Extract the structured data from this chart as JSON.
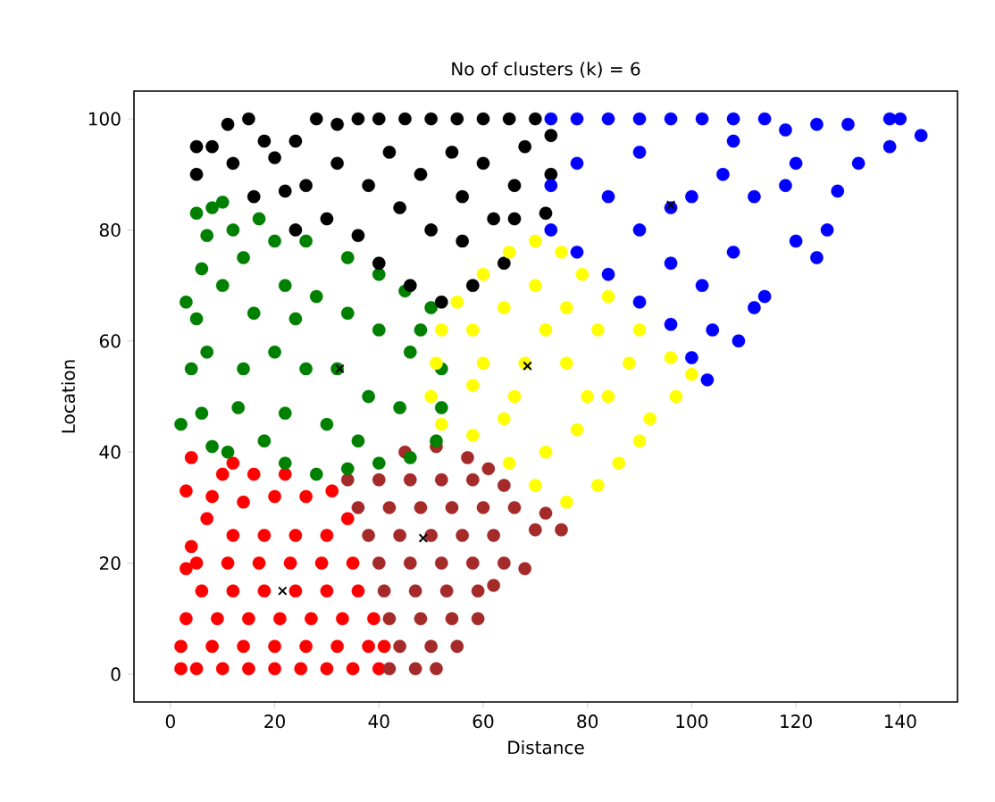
{
  "chart_data": {
    "type": "scatter",
    "title": "No of clusters (k) = 6",
    "xlabel": "Distance",
    "ylabel": "Location",
    "xlim": [
      -7,
      151
    ],
    "ylim": [
      -5,
      105
    ],
    "xticks": [
      0,
      20,
      40,
      60,
      80,
      100,
      120,
      140
    ],
    "yticks": [
      0,
      20,
      40,
      60,
      80,
      100
    ],
    "grid": false,
    "series": [
      {
        "color": "#ff0000",
        "marker": "circle",
        "x": [
          2,
          5,
          10,
          15,
          20,
          25,
          30,
          35,
          40,
          2,
          8,
          14,
          20,
          26,
          32,
          38,
          41,
          3,
          9,
          15,
          21,
          27,
          33,
          39,
          3,
          6,
          12,
          18,
          24,
          30,
          36,
          5,
          11,
          17,
          23,
          29,
          35,
          3,
          4,
          7,
          12,
          18,
          24,
          30,
          34,
          8,
          14,
          20,
          26,
          31,
          10,
          16,
          22,
          12,
          4
        ],
        "values": [
          1,
          1,
          1,
          1,
          1,
          1,
          1,
          1,
          1,
          5,
          5,
          5,
          5,
          5,
          5,
          5,
          5,
          10,
          10,
          10,
          10,
          10,
          10,
          10,
          19,
          15,
          15,
          15,
          15,
          15,
          15,
          20,
          20,
          20,
          20,
          20,
          20,
          33,
          23,
          28,
          25,
          25,
          25,
          25,
          28,
          32,
          31,
          32,
          32,
          33,
          36,
          36,
          36,
          38,
          39
        ]
      },
      {
        "color": "#a52a2a",
        "marker": "circle",
        "x": [
          42,
          47,
          51,
          44,
          50,
          55,
          42,
          48,
          54,
          59,
          41,
          47,
          53,
          59,
          62,
          40,
          46,
          52,
          58,
          64,
          68,
          38,
          44,
          50,
          56,
          62,
          70,
          75,
          36,
          42,
          48,
          54,
          60,
          66,
          72,
          34,
          40,
          46,
          52,
          58,
          64,
          45,
          51,
          57,
          61
        ],
        "values": [
          1,
          1,
          1,
          5,
          5,
          5,
          10,
          10,
          10,
          10,
          15,
          15,
          15,
          15,
          16,
          20,
          20,
          20,
          20,
          20,
          19,
          25,
          25,
          25,
          25,
          25,
          26,
          26,
          30,
          30,
          30,
          30,
          30,
          30,
          29,
          35,
          35,
          35,
          35,
          35,
          34,
          40,
          41,
          39,
          37
        ]
      },
      {
        "color": "#008000",
        "marker": "circle",
        "x": [
          2,
          4,
          3,
          5,
          8,
          10,
          7,
          6,
          5,
          7,
          6,
          8,
          11,
          10,
          12,
          14,
          17,
          20,
          16,
          14,
          13,
          18,
          22,
          28,
          34,
          40,
          46,
          51,
          52,
          52,
          48,
          50,
          45,
          40,
          34,
          26,
          22,
          28,
          34,
          40,
          46,
          20,
          26,
          32,
          38,
          44,
          22,
          30,
          36,
          24
        ],
        "values": [
          45,
          55,
          67,
          83,
          84,
          85,
          79,
          73,
          64,
          58,
          47,
          41,
          40,
          70,
          80,
          75,
          82,
          78,
          65,
          55,
          48,
          42,
          38,
          36,
          37,
          38,
          39,
          42,
          48,
          55,
          62,
          66,
          69,
          72,
          75,
          78,
          70,
          68,
          65,
          62,
          58,
          58,
          55,
          55,
          50,
          48,
          47,
          45,
          42,
          64
        ]
      },
      {
        "color": "#000000",
        "marker": "circle",
        "x": [
          5,
          5,
          8,
          11,
          12,
          15,
          18,
          20,
          16,
          22,
          24,
          28,
          32,
          36,
          40,
          45,
          50,
          55,
          60,
          65,
          70,
          73,
          73,
          72,
          66,
          64,
          58,
          52,
          46,
          40,
          36,
          30,
          26,
          32,
          38,
          44,
          50,
          56,
          62,
          66,
          60,
          54,
          48,
          42,
          68,
          24,
          56
        ],
        "values": [
          95,
          90,
          95,
          99,
          92,
          100,
          96,
          93,
          86,
          87,
          96,
          100,
          99,
          100,
          100,
          100,
          100,
          100,
          100,
          100,
          100,
          97,
          90,
          83,
          82,
          74,
          70,
          67,
          70,
          74,
          79,
          82,
          88,
          92,
          88,
          84,
          80,
          78,
          82,
          88,
          92,
          94,
          90,
          94,
          95,
          80,
          86
        ]
      },
      {
        "color": "#ffff00",
        "marker": "circle",
        "x": [
          50,
          51,
          52,
          55,
          60,
          65,
          70,
          75,
          79,
          84,
          90,
          96,
          100,
          97,
          92,
          90,
          86,
          82,
          76,
          70,
          65,
          58,
          52,
          58,
          58,
          64,
          70,
          76,
          82,
          88,
          84,
          78,
          72,
          64,
          68,
          76,
          72,
          60,
          66,
          80
        ],
        "values": [
          50,
          56,
          62,
          67,
          72,
          76,
          78,
          76,
          72,
          68,
          62,
          57,
          54,
          50,
          46,
          42,
          38,
          34,
          31,
          34,
          38,
          43,
          45,
          52,
          62,
          66,
          70,
          66,
          62,
          56,
          50,
          44,
          40,
          46,
          56,
          56,
          62,
          56,
          50,
          50
        ]
      },
      {
        "color": "#0000ff",
        "marker": "circle",
        "x": [
          73,
          78,
          84,
          90,
          96,
          102,
          108,
          114,
          118,
          124,
          130,
          138,
          140,
          144,
          138,
          132,
          128,
          126,
          124,
          120,
          114,
          112,
          109,
          104,
          103,
          100,
          96,
          90,
          84,
          78,
          73,
          73,
          78,
          84,
          90,
          96,
          102,
          108,
          100,
          106,
          112,
          118,
          90,
          96,
          120,
          108
        ],
        "values": [
          100,
          100,
          100,
          100,
          100,
          100,
          100,
          100,
          98,
          99,
          99,
          100,
          100,
          97,
          95,
          92,
          87,
          80,
          75,
          78,
          68,
          66,
          60,
          62,
          53,
          57,
          63,
          67,
          72,
          76,
          80,
          88,
          92,
          86,
          80,
          74,
          70,
          76,
          86,
          90,
          86,
          88,
          94,
          84,
          92,
          96
        ]
      },
      {
        "color": "#000000",
        "marker": "cross",
        "x": [
          21.5,
          48.5,
          32.5,
          68.5,
          96
        ],
        "values": [
          15,
          24.5,
          55,
          55.5,
          84.5
        ]
      }
    ]
  }
}
